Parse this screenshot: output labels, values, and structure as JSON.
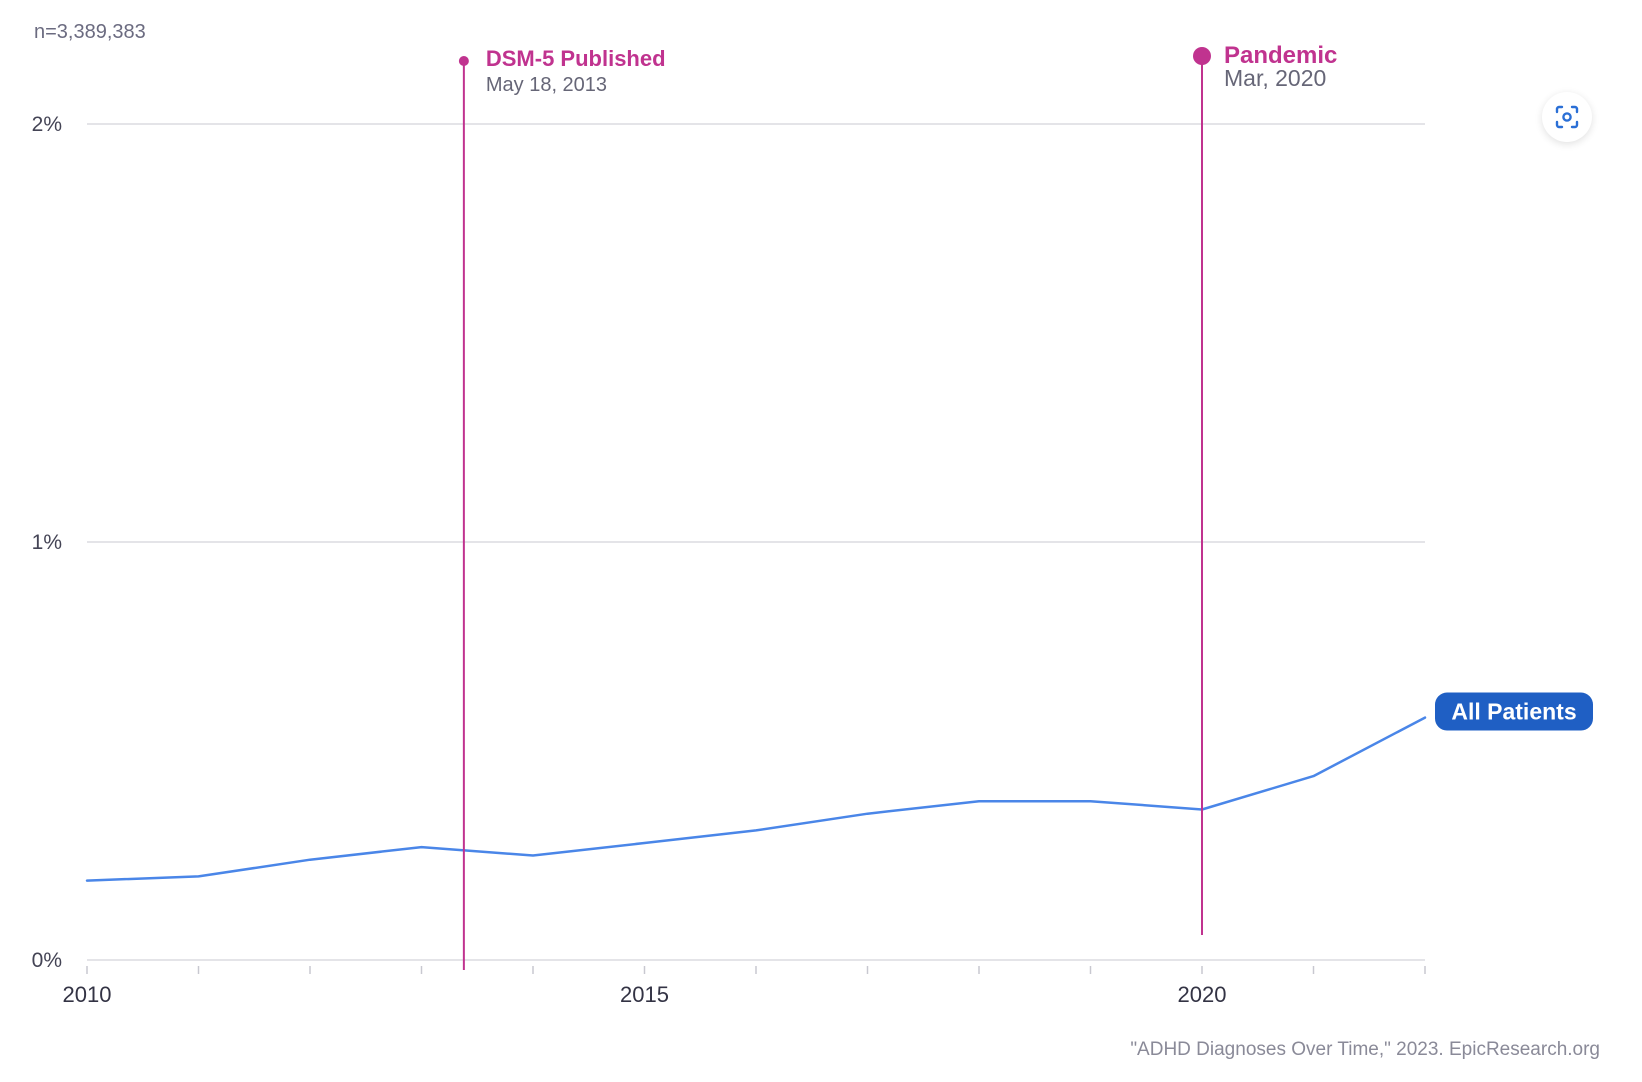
{
  "header": {
    "sample_size": "n=3,389,383"
  },
  "source_note": "\"ADHD Diagnoses Over Time,\" 2023. EpicResearch.org",
  "colors": {
    "series": "#4a86e8",
    "event": "#c0338f",
    "grid": "#e4e4e8",
    "series_label_bg": "#1f5fc4"
  },
  "icons": {
    "screenshot": "screenshot-focus-icon"
  },
  "chart_data": {
    "type": "line",
    "x_range": [
      2010,
      2022
    ],
    "ylim": [
      0,
      2
    ],
    "y_ticks": [
      {
        "value": 0,
        "label": "0%"
      },
      {
        "value": 1,
        "label": "1%"
      },
      {
        "value": 2,
        "label": "2%"
      }
    ],
    "x_ticks": [
      2010,
      2011,
      2012,
      2013,
      2014,
      2015,
      2016,
      2017,
      2018,
      2019,
      2020,
      2021,
      2022
    ],
    "x_tick_labels": [
      {
        "value": 2010,
        "label": "2010"
      },
      {
        "value": 2015,
        "label": "2015"
      },
      {
        "value": 2020,
        "label": "2020"
      }
    ],
    "grid": true,
    "series": [
      {
        "name": "All Patients",
        "x": [
          2010,
          2011,
          2012,
          2013,
          2014,
          2015,
          2016,
          2017,
          2018,
          2019,
          2020,
          2021,
          2022
        ],
        "values": [
          0.19,
          0.2,
          0.24,
          0.27,
          0.25,
          0.28,
          0.31,
          0.35,
          0.38,
          0.38,
          0.36,
          0.44,
          0.58
        ]
      }
    ],
    "annotations": [
      {
        "x": 2013.38,
        "label": "DSM-5 Published",
        "date": "May 18, 2013"
      },
      {
        "x": 2020.0,
        "label": "Pandemic",
        "date": "Mar, 2020"
      }
    ]
  }
}
